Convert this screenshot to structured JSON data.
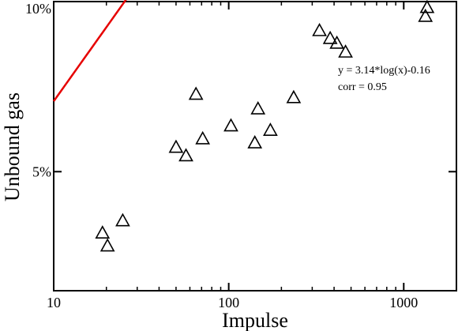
{
  "chart_data": {
    "type": "scatter",
    "xlabel": "Impulse",
    "ylabel": "Unbound gas",
    "x_scale": "log",
    "xlim": [
      10,
      2000
    ],
    "ylim": [
      1.5,
      10
    ],
    "x_ticks": [
      {
        "value": 10,
        "label": "10"
      },
      {
        "value": 100,
        "label": "100"
      },
      {
        "value": 1000,
        "label": "1000"
      }
    ],
    "y_ticks": [
      {
        "value": 5,
        "label": "5%"
      },
      {
        "value": 10,
        "label": "10%"
      }
    ],
    "points": [
      {
        "x": 19,
        "y": 3.2
      },
      {
        "x": 20.3,
        "y": 2.82
      },
      {
        "x": 24.8,
        "y": 3.56
      },
      {
        "x": 50,
        "y": 5.72
      },
      {
        "x": 57,
        "y": 5.47
      },
      {
        "x": 65,
        "y": 7.28
      },
      {
        "x": 71,
        "y": 5.97
      },
      {
        "x": 103,
        "y": 6.35
      },
      {
        "x": 141,
        "y": 5.85
      },
      {
        "x": 147,
        "y": 6.85
      },
      {
        "x": 173,
        "y": 6.22
      },
      {
        "x": 235,
        "y": 7.18
      },
      {
        "x": 330,
        "y": 9.15
      },
      {
        "x": 380,
        "y": 8.92
      },
      {
        "x": 415,
        "y": 8.78
      },
      {
        "x": 465,
        "y": 8.52
      },
      {
        "x": 1330,
        "y": 9.57
      },
      {
        "x": 1360,
        "y": 9.83
      }
    ],
    "fit": {
      "label": "y = 3.14*log(x)-0.16",
      "corr_label": "corr = 0.95",
      "slope": 3.14,
      "intercept": -0.16,
      "x_range": [
        10,
        1350
      ],
      "color": "#e60000"
    },
    "marker_color": "#000000",
    "grid": false
  }
}
